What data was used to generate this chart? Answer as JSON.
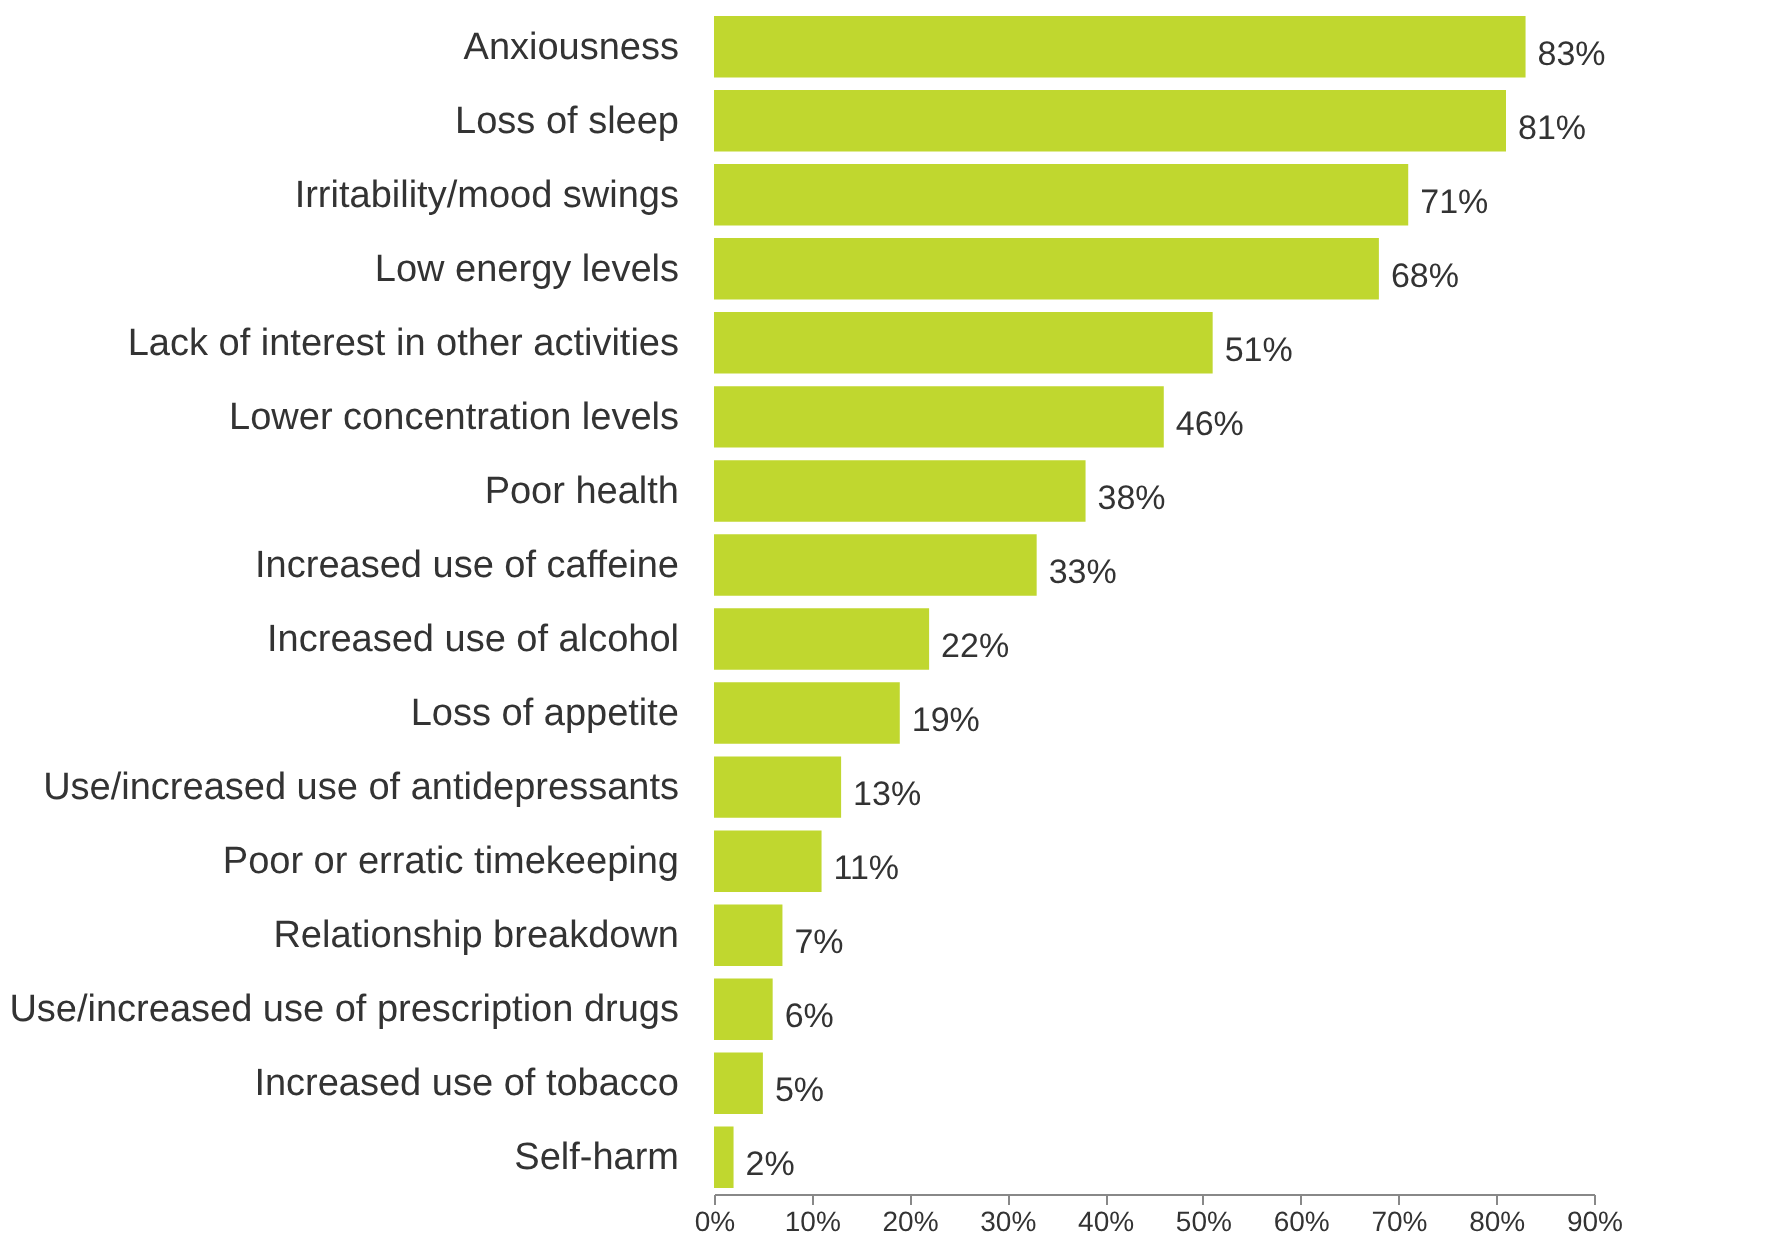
{
  "chart_data": {
    "type": "bar",
    "orientation": "horizontal",
    "categories": [
      "Anxiousness",
      "Loss of sleep",
      "Irritability/mood swings",
      "Low energy levels",
      "Lack of interest in other activities",
      "Lower concentration levels",
      "Poor health",
      "Increased use of caffeine",
      "Increased use of alcohol",
      "Loss of appetite",
      "Use/increased use of antidepressants",
      "Poor or erratic timekeeping",
      "Relationship breakdown",
      "Use/increased use of prescription drugs",
      "Increased use of tobacco",
      "Self-harm"
    ],
    "values": [
      83,
      81,
      71,
      68,
      51,
      46,
      38,
      33,
      22,
      19,
      13,
      11,
      7,
      6,
      5,
      2
    ],
    "value_labels": [
      "83%",
      "81%",
      "71%",
      "68%",
      "51%",
      "46%",
      "38%",
      "33%",
      "22%",
      "19%",
      "13%",
      "11%",
      "7%",
      "6%",
      "5%",
      "2%"
    ],
    "color": "#c0d72f",
    "xlim": [
      0,
      90
    ],
    "xticks": [
      {
        "value": 0,
        "label": "0%"
      },
      {
        "value": 10,
        "label": "10%"
      },
      {
        "value": 20,
        "label": "20%"
      },
      {
        "value": 30,
        "label": "30%"
      },
      {
        "value": 40,
        "label": "40%"
      },
      {
        "value": 50,
        "label": "50%"
      },
      {
        "value": 60,
        "label": "60%"
      },
      {
        "value": 70,
        "label": "70%"
      },
      {
        "value": 80,
        "label": "80%"
      },
      {
        "value": 90,
        "label": "90%"
      }
    ],
    "grid": false
  }
}
